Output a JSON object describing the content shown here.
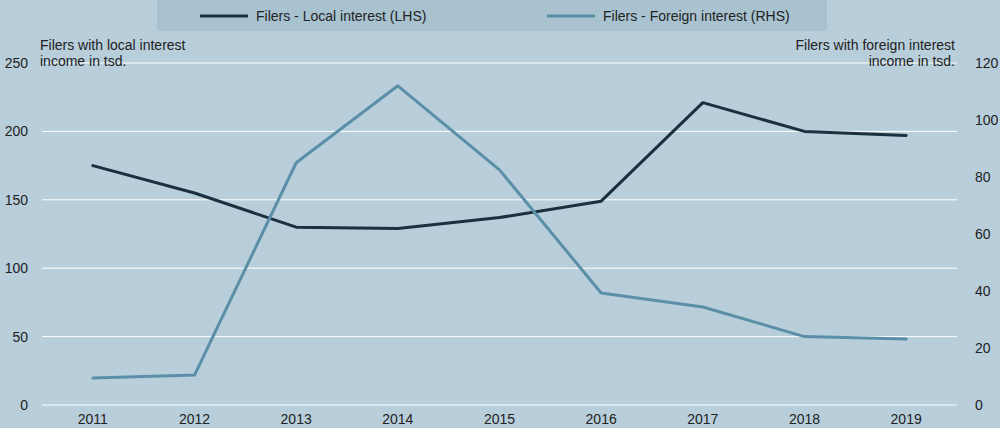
{
  "chart_data": {
    "type": "line",
    "categories": [
      "2011",
      "2012",
      "2013",
      "2014",
      "2015",
      "2016",
      "2017",
      "2018",
      "2019"
    ],
    "y_label": "Filers with local interest\nincome in tsd.",
    "y2_label": "Filers with foreign interest\nincome in tsd.",
    "ylim": [
      0,
      250
    ],
    "yticks": [
      0,
      50,
      100,
      150,
      200,
      250
    ],
    "y2lim": [
      0,
      120
    ],
    "y2ticks": [
      0,
      20,
      40,
      60,
      80,
      100,
      120
    ],
    "grid": true,
    "legend": "top",
    "series": [
      {
        "name": "Filers - Local interest (LHS)",
        "color": "#1b2f3f",
        "axis": "y",
        "values": [
          175,
          155,
          130,
          129,
          137,
          149,
          221,
          200,
          197
        ]
      },
      {
        "name": "Filers - Foreign interest (RHS)",
        "color": "#5b8fa8",
        "axis": "y2",
        "values": [
          9.5,
          10.5,
          85,
          112,
          82.5,
          39.3,
          34.4,
          24,
          23.2
        ]
      }
    ]
  }
}
